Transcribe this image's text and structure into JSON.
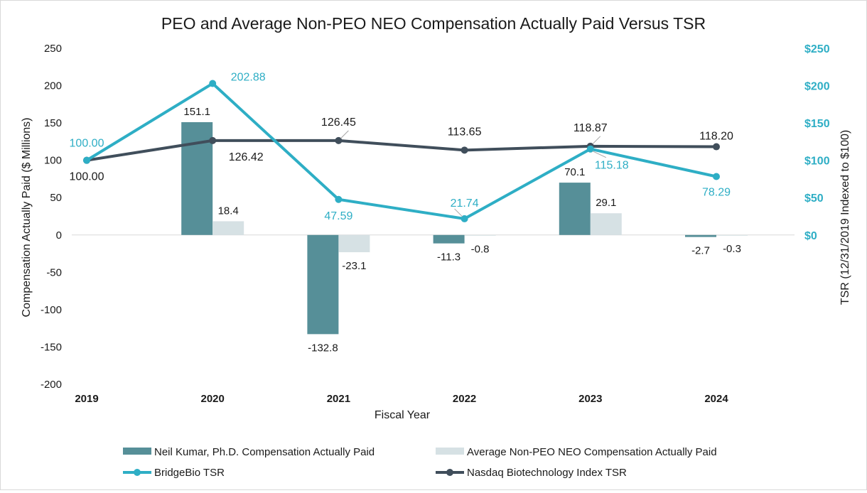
{
  "chart_data": {
    "type": "bar-line-combo",
    "title": "PEO and Average Non-PEO NEO Compensation Actually Paid Versus TSR",
    "xlabel": "Fiscal Year",
    "ylabel_left": "Compensation Actually Paid ($ Millions)",
    "ylabel_right": "TSR (12/31/2019 Indexed to $100)",
    "categories": [
      "2019",
      "2020",
      "2021",
      "2022",
      "2023",
      "2024"
    ],
    "ylim_left": [
      -200,
      250
    ],
    "yticks_left": [
      "250",
      "200",
      "150",
      "100",
      "50",
      "0",
      "-50",
      "-100",
      "-150",
      "-200"
    ],
    "ylim_right": [
      0,
      250
    ],
    "yticks_right": [
      "$250",
      "$200",
      "$150",
      "$100",
      "$50",
      "$0"
    ],
    "bar_series": [
      {
        "name": "Neil Kumar, Ph.D.  Compensation Actually Paid",
        "color": "#568f98",
        "values": [
          null,
          151.1,
          -132.8,
          -11.3,
          70.1,
          -2.7
        ],
        "labels": [
          "",
          "151.1",
          "-132.8",
          "-11.3",
          "70.1",
          "-2.7"
        ]
      },
      {
        "name": "Average Non-PEO NEO Compensation Actually Paid",
        "color": "#d6e1e4",
        "values": [
          null,
          18.4,
          -23.1,
          -0.8,
          29.1,
          -0.3
        ],
        "labels": [
          "",
          "18.4",
          "-23.1",
          "-0.8",
          "29.1",
          "-0.3"
        ]
      }
    ],
    "line_series": [
      {
        "name": "BridgeBio TSR",
        "color": "#2eaec5",
        "label_color": "#2eaec5",
        "values": [
          100.0,
          202.88,
          47.59,
          21.74,
          115.18,
          78.29
        ],
        "labels": [
          "100.00",
          "202.88",
          "47.59",
          "21.74",
          "115.18",
          "78.29"
        ]
      },
      {
        "name": "Nasdaq Biotechnology Index TSR",
        "color": "#404e5b",
        "label_color": "#1a1a1a",
        "values": [
          100.0,
          126.42,
          126.45,
          113.65,
          118.87,
          118.2
        ],
        "labels": [
          "100.00",
          "126.42",
          "126.45",
          "113.65",
          "118.87",
          "118.20"
        ]
      }
    ],
    "left_tick_color": "#1a1a1a",
    "right_tick_color": "#2eaec5",
    "legend_position": "bottom"
  }
}
